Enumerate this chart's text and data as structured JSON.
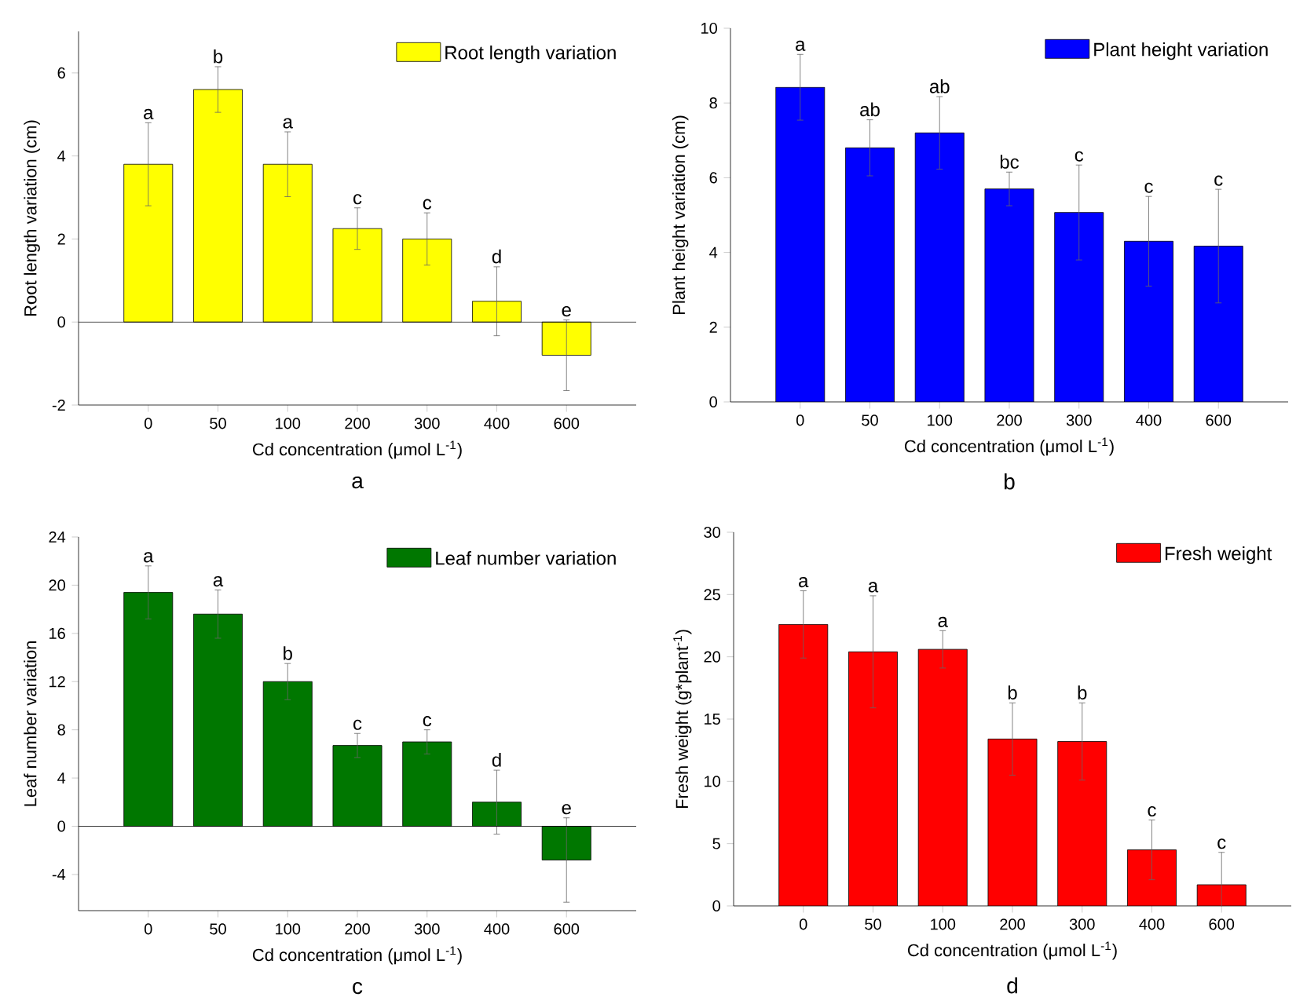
{
  "chart_data": [
    {
      "type": "bar",
      "title": "a",
      "xlabel": "Cd concentration (μmol L$^{-1}$)",
      "ylabel": "Root length variation (cm)",
      "categories": [
        "0",
        "50",
        "100",
        "200",
        "300",
        "400",
        "600"
      ],
      "series": [
        {
          "name": "Root length variation",
          "color": "#ffff00",
          "values": [
            3.8,
            5.6,
            3.8,
            2.25,
            2.0,
            0.5,
            -0.8
          ],
          "errors": [
            1.0,
            0.55,
            0.78,
            0.5,
            0.63,
            0.83,
            0.85
          ]
        }
      ],
      "ylim": [
        -2,
        7
      ],
      "yticks": [
        -2,
        0,
        2,
        4,
        6
      ],
      "legend": "top right",
      "ref_lines": [
        {
          "axis": "y",
          "value": 0
        }
      ],
      "annotations": [
        {
          "text": "a",
          "x": "0",
          "y": 4.8
        },
        {
          "text": "b",
          "x": "50",
          "y": 6.15
        },
        {
          "text": "a",
          "x": "100",
          "y": 4.58
        },
        {
          "text": "c",
          "x": "200",
          "y": 2.75
        },
        {
          "text": "c",
          "x": "300",
          "y": 2.63
        },
        {
          "text": "d",
          "x": "400",
          "y": 1.33
        },
        {
          "text": "e",
          "x": "600",
          "y": 0.05
        }
      ]
    },
    {
      "type": "bar",
      "title": "b",
      "xlabel": "Cd concentration (μmol L$^{-1}$)",
      "ylabel": "Plant height variation (cm)",
      "categories": [
        "0",
        "50",
        "100",
        "200",
        "300",
        "400",
        "600"
      ],
      "series": [
        {
          "name": "Plant height variation",
          "color": "#0000ff",
          "values": [
            8.42,
            6.8,
            7.2,
            5.7,
            5.07,
            4.3,
            4.17
          ],
          "errors": [
            0.88,
            0.75,
            0.97,
            0.45,
            1.27,
            1.2,
            1.52
          ]
        }
      ],
      "ylim": [
        0,
        10
      ],
      "yticks": [
        0,
        2,
        4,
        6,
        8,
        10
      ],
      "legend": "top right",
      "annotations": [
        {
          "text": "a",
          "x": "0",
          "y": 9.3
        },
        {
          "text": "ab",
          "x": "50",
          "y": 7.55
        },
        {
          "text": "ab",
          "x": "100",
          "y": 8.17
        },
        {
          "text": "bc",
          "x": "200",
          "y": 6.15
        },
        {
          "text": "c",
          "x": "300",
          "y": 6.34
        },
        {
          "text": "c",
          "x": "400",
          "y": 5.5
        },
        {
          "text": "c",
          "x": "600",
          "y": 5.69
        }
      ]
    },
    {
      "type": "bar",
      "title": "c",
      "xlabel": "Cd concentration (μmol L$^{-1}$)",
      "ylabel": "Leaf number variation",
      "categories": [
        "0",
        "50",
        "100",
        "200",
        "300",
        "400",
        "600"
      ],
      "series": [
        {
          "name": "Leaf number variation",
          "color": "#007700",
          "values": [
            19.4,
            17.6,
            12.0,
            6.7,
            7.0,
            2.0,
            -2.8
          ],
          "errors": [
            2.2,
            2.0,
            1.5,
            1.0,
            1.0,
            2.65,
            3.5
          ]
        }
      ],
      "ylim": [
        -7,
        24
      ],
      "yticks": [
        -4,
        0,
        4,
        8,
        12,
        16,
        20,
        24
      ],
      "legend": "top right",
      "ref_lines": [
        {
          "axis": "y",
          "value": 0
        }
      ],
      "annotations": [
        {
          "text": "a",
          "x": "0",
          "y": 21.6
        },
        {
          "text": "a",
          "x": "50",
          "y": 19.6
        },
        {
          "text": "b",
          "x": "100",
          "y": 13.5
        },
        {
          "text": "c",
          "x": "200",
          "y": 7.7
        },
        {
          "text": "c",
          "x": "300",
          "y": 8.0
        },
        {
          "text": "d",
          "x": "400",
          "y": 4.65
        },
        {
          "text": "e",
          "x": "600",
          "y": 0.7
        }
      ]
    },
    {
      "type": "bar",
      "title": "d",
      "xlabel": "Cd concentration (μmol L$^{-1}$)",
      "ylabel": "Fresh weight (g*plant$^{-1}$)",
      "categories": [
        "0",
        "50",
        "100",
        "200",
        "300",
        "400",
        "600"
      ],
      "series": [
        {
          "name": "Fresh weight",
          "color": "#ff0000",
          "values": [
            22.6,
            20.4,
            20.6,
            13.4,
            13.2,
            4.5,
            1.7
          ],
          "errors": [
            2.7,
            4.5,
            1.5,
            2.9,
            3.1,
            2.4,
            2.6
          ]
        }
      ],
      "ylim": [
        0,
        30
      ],
      "yticks": [
        0,
        5,
        10,
        15,
        20,
        25,
        30
      ],
      "legend": "top right",
      "annotations": [
        {
          "text": "a",
          "x": "0",
          "y": 25.3
        },
        {
          "text": "a",
          "x": "50",
          "y": 24.9
        },
        {
          "text": "a",
          "x": "100",
          "y": 22.1
        },
        {
          "text": "b",
          "x": "200",
          "y": 16.3
        },
        {
          "text": "b",
          "x": "300",
          "y": 16.3
        },
        {
          "text": "c",
          "x": "400",
          "y": 6.9
        },
        {
          "text": "c",
          "x": "600",
          "y": 4.3
        }
      ]
    }
  ]
}
